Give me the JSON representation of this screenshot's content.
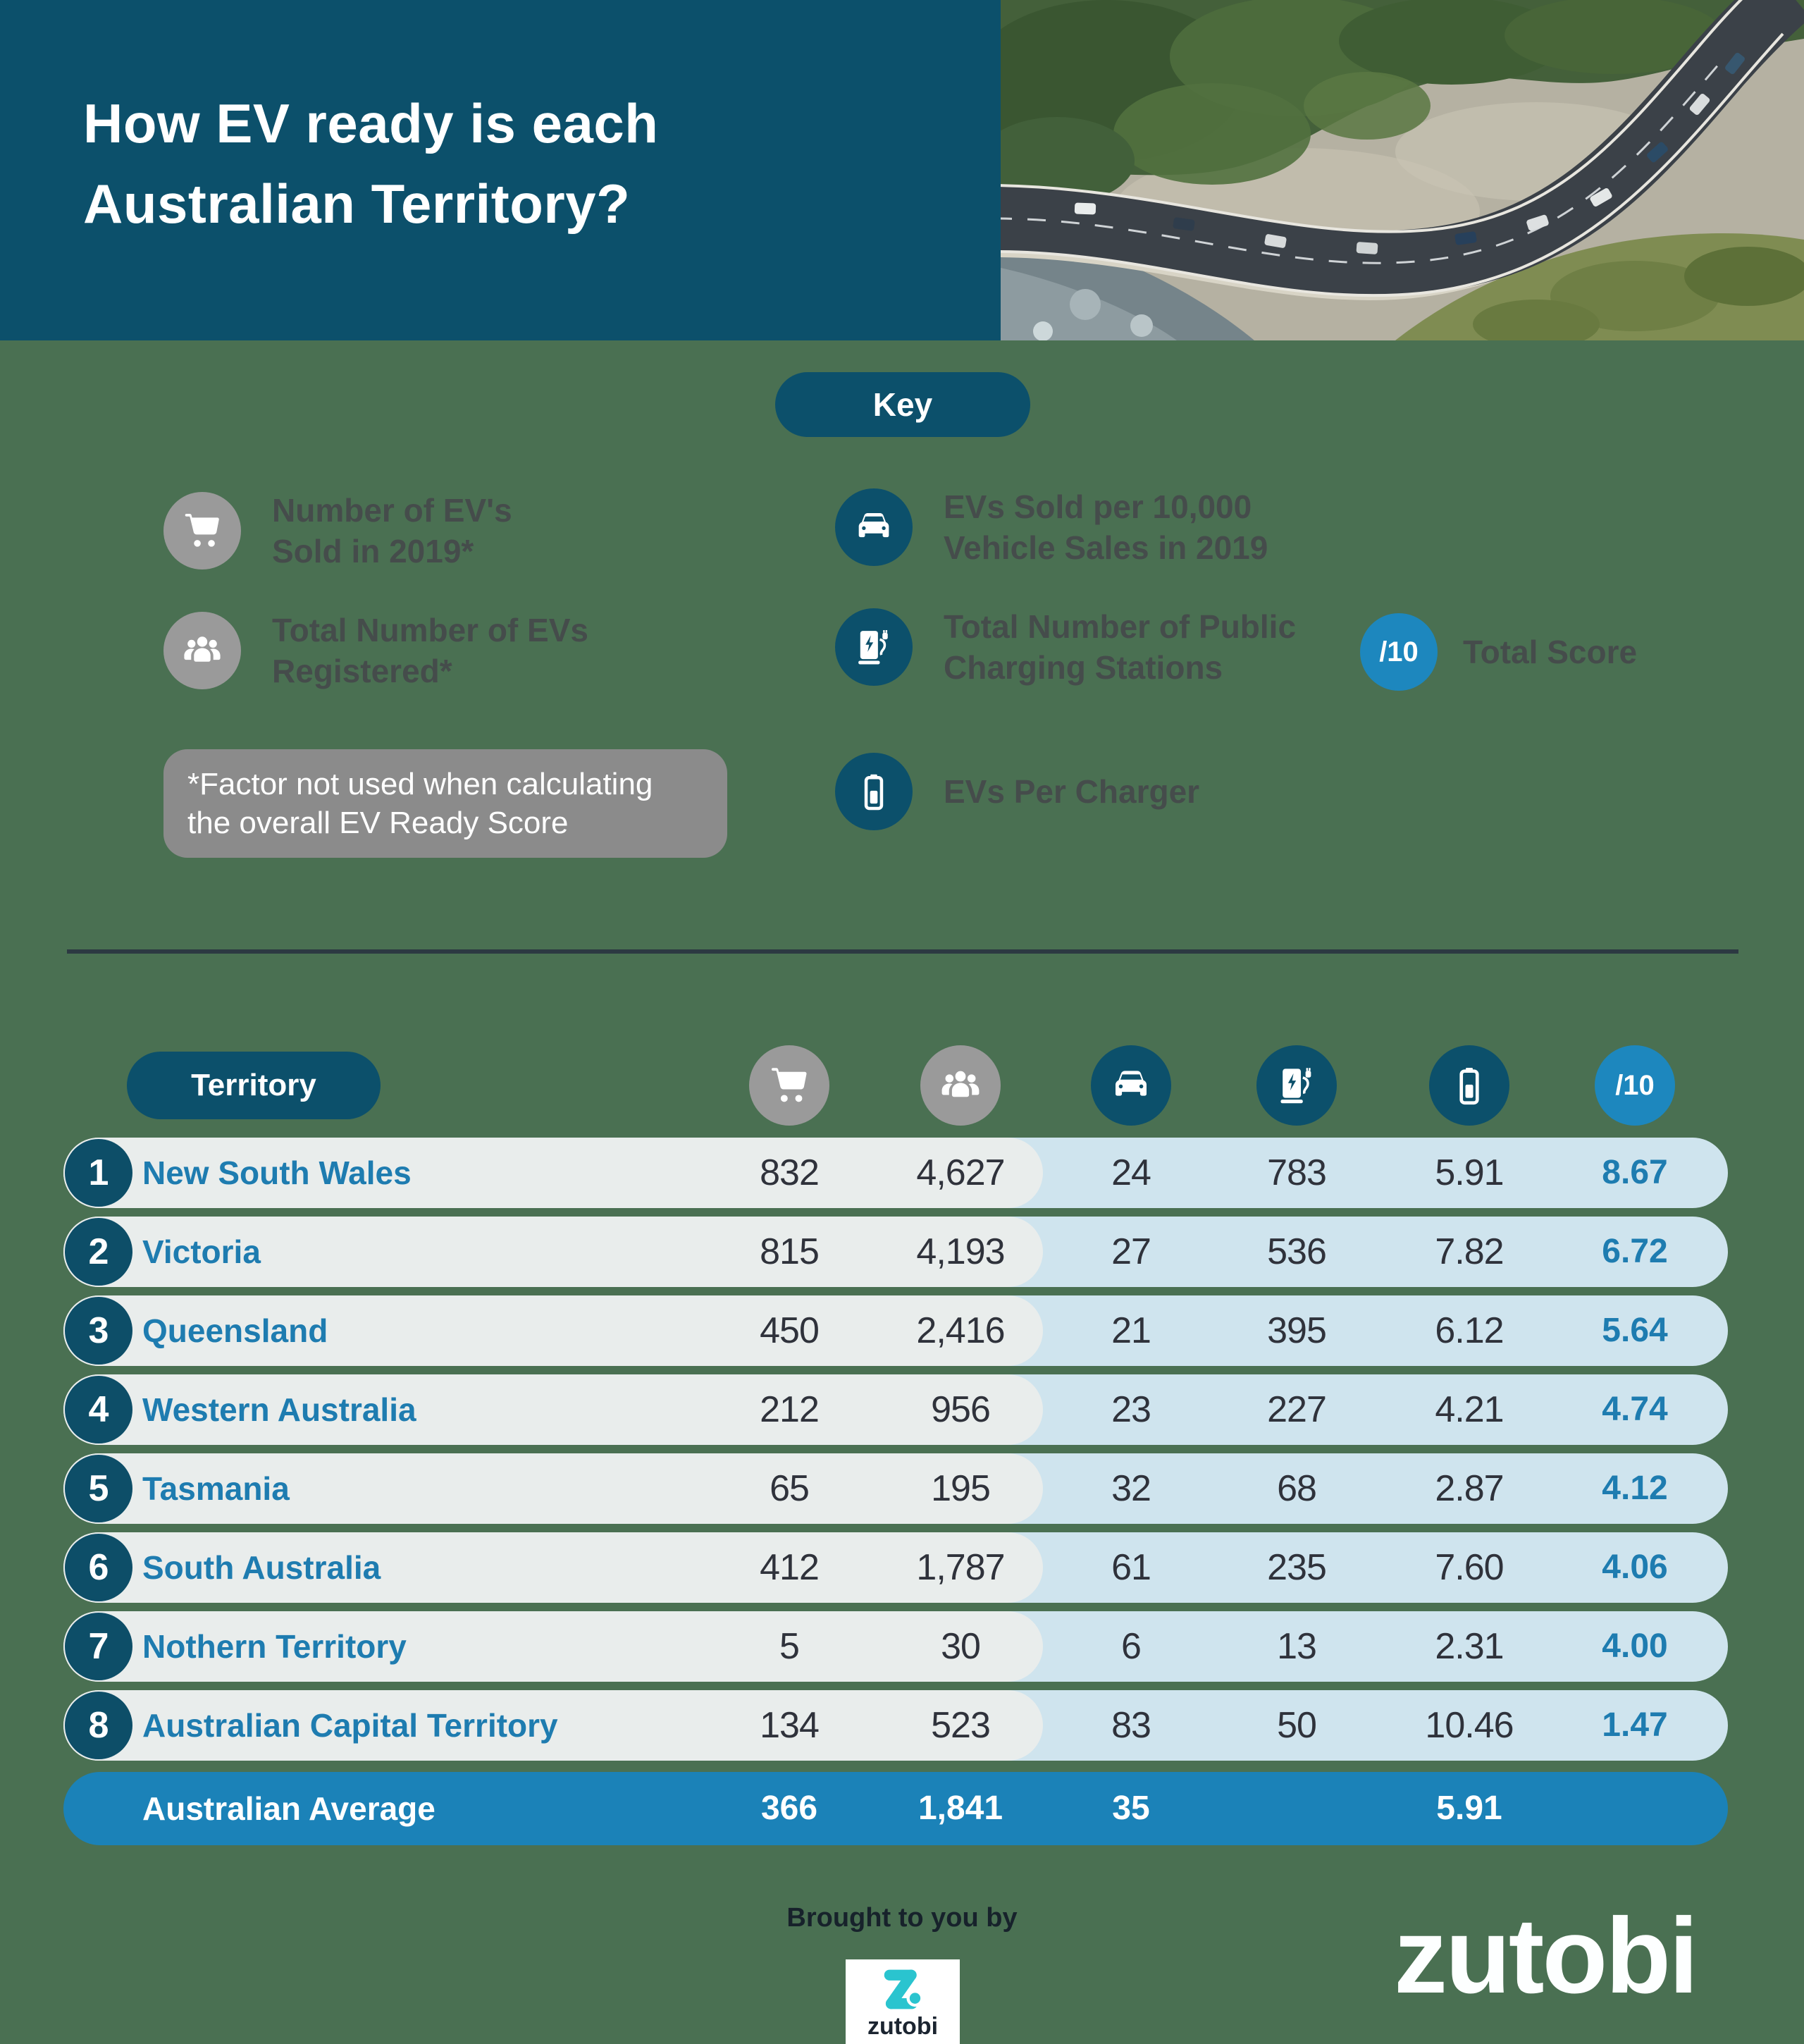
{
  "colors": {
    "background": "#4a7052",
    "header_teal": "#0c506b",
    "accent_blue": "#1d87be",
    "row_gray": "#e9edec",
    "row_blue": "#cfe4ee",
    "average_row_blue": "#1b82b8",
    "territory_name_blue": "#1e7cb0",
    "number_dark": "#2f323b",
    "note_gray": "#8b8b8b",
    "icon_gray": "#9a9a9a",
    "divider": "#2c3942",
    "logo_teal": "#2ac4cf"
  },
  "header": {
    "title_line1": "How EV ready is each",
    "title_line2": "Australian Territory?"
  },
  "key": {
    "title": "Key",
    "items": [
      {
        "icon": "cart-icon",
        "style": "gray",
        "line1": "Number of EV's",
        "line2": "Sold in 2019*"
      },
      {
        "icon": "people-icon",
        "style": "gray",
        "line1": "Total Number of EVs",
        "line2": "Registered*"
      },
      {
        "icon": "car-icon",
        "style": "teal",
        "line1": "EVs Sold per 10,000",
        "line2": "Vehicle Sales in 2019"
      },
      {
        "icon": "charger-icon",
        "style": "teal",
        "line1": "Total Number of Public",
        "line2": "Charging Stations"
      },
      {
        "icon": "battery-icon",
        "style": "teal",
        "line1": "EVs Per Charger",
        "line2": ""
      }
    ],
    "note_line1": "*Factor not used when calculating",
    "note_line2": "the overall EV Ready Score",
    "total_score_badge": "/10",
    "total_score_label": "Total Score"
  },
  "table": {
    "territory_header": "Territory",
    "column_icons": [
      "cart-icon",
      "people-icon",
      "car-icon",
      "charger-icon",
      "battery-icon",
      "score-badge"
    ],
    "score_badge_text": "/10",
    "rows": [
      {
        "rank": "1",
        "territory": "New South Wales",
        "sold": "832",
        "registered": "4,627",
        "per10k": "24",
        "chargers": "783",
        "evs_per_charger": "5.91",
        "score": "8.67"
      },
      {
        "rank": "2",
        "territory": "Victoria",
        "sold": "815",
        "registered": "4,193",
        "per10k": "27",
        "chargers": "536",
        "evs_per_charger": "7.82",
        "score": "6.72"
      },
      {
        "rank": "3",
        "territory": "Queensland",
        "sold": "450",
        "registered": "2,416",
        "per10k": "21",
        "chargers": "395",
        "evs_per_charger": "6.12",
        "score": "5.64"
      },
      {
        "rank": "4",
        "territory": "Western Australia",
        "sold": "212",
        "registered": "956",
        "per10k": "23",
        "chargers": "227",
        "evs_per_charger": "4.21",
        "score": "4.74"
      },
      {
        "rank": "5",
        "territory": "Tasmania",
        "sold": "65",
        "registered": "195",
        "per10k": "32",
        "chargers": "68",
        "evs_per_charger": "2.87",
        "score": "4.12"
      },
      {
        "rank": "6",
        "territory": "South Australia",
        "sold": "412",
        "registered": "1,787",
        "per10k": "61",
        "chargers": "235",
        "evs_per_charger": "7.60",
        "score": "4.06"
      },
      {
        "rank": "7",
        "territory": "Nothern Territory",
        "sold": "5",
        "registered": "30",
        "per10k": "6",
        "chargers": "13",
        "evs_per_charger": "2.31",
        "score": "4.00"
      },
      {
        "rank": "8",
        "territory": "Australian Capital Territory",
        "sold": "134",
        "registered": "523",
        "per10k": "83",
        "chargers": "50",
        "evs_per_charger": "10.46",
        "score": "1.47"
      }
    ],
    "average": {
      "label": "Australian Average",
      "sold": "366",
      "registered": "1,841",
      "per10k": "35",
      "chargers": "",
      "evs_per_charger": "5.91",
      "score": ""
    }
  },
  "footer": {
    "brought_by": "Brought to you by",
    "logo_text": "zutobi",
    "wordmark": "zutobi"
  },
  "chart_data": {
    "type": "table",
    "title": "How EV ready is each Australian Territory?",
    "columns": [
      "Territory",
      "Number of EV's Sold in 2019",
      "Total Number of EVs Registered",
      "EVs Sold per 10,000 Vehicle Sales in 2019",
      "Total Number of Public Charging Stations",
      "EVs Per Charger",
      "Total Score (/10)"
    ],
    "rows": [
      [
        "New South Wales",
        832,
        4627,
        24,
        783,
        5.91,
        8.67
      ],
      [
        "Victoria",
        815,
        4193,
        27,
        536,
        7.82,
        6.72
      ],
      [
        "Queensland",
        450,
        2416,
        21,
        395,
        6.12,
        5.64
      ],
      [
        "Western Australia",
        212,
        956,
        23,
        227,
        4.21,
        4.74
      ],
      [
        "Tasmania",
        65,
        195,
        32,
        68,
        2.87,
        4.12
      ],
      [
        "South Australia",
        412,
        1787,
        61,
        235,
        7.6,
        4.06
      ],
      [
        "Nothern Territory",
        5,
        30,
        6,
        13,
        2.31,
        4.0
      ],
      [
        "Australian Capital Territory",
        134,
        523,
        83,
        50,
        10.46,
        1.47
      ]
    ],
    "average_row": [
      "Australian Average",
      366,
      1841,
      35,
      null,
      5.91,
      null
    ],
    "legend": [
      "cart-icon = Number of EV's Sold in 2019 (not used in score)",
      "people-icon = Total Number of EVs Registered (not used in score)",
      "car-icon = EVs Sold per 10,000 Vehicle Sales in 2019",
      "charger-icon = Total Number of Public Charging Stations",
      "battery-icon = EVs Per Charger",
      "/10 = Total Score"
    ]
  }
}
